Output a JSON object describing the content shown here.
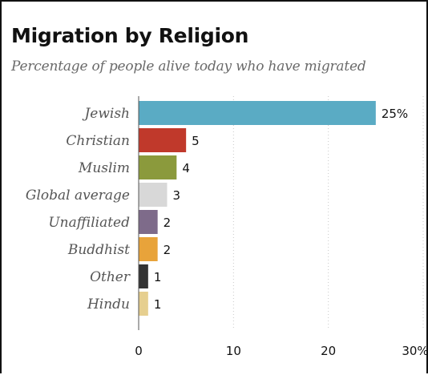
{
  "chart_data": {
    "type": "bar",
    "orientation": "horizontal",
    "title": "Migration by Religion",
    "subtitle": "Percentage of people alive today who have migrated",
    "categories": [
      "Jewish",
      "Christian",
      "Muslim",
      "Global average",
      "Unaffiliated",
      "Buddhist",
      "Other",
      "Hindu"
    ],
    "values": [
      25,
      5,
      4,
      3,
      2,
      2,
      1,
      1
    ],
    "value_labels": [
      "25%",
      "5",
      "4",
      "3",
      "2",
      "2",
      "1",
      "1"
    ],
    "colors": [
      "#5aabc4",
      "#c0392b",
      "#8b9a3c",
      "#d8d8d8",
      "#7e6b8a",
      "#e8a33a",
      "#333333",
      "#e6cf8f"
    ],
    "xlim": [
      0,
      30
    ],
    "xticks": [
      0,
      10,
      20,
      30
    ],
    "xtick_labels": [
      "0",
      "10",
      "20",
      "30%"
    ],
    "grid": true,
    "legend": "none"
  }
}
